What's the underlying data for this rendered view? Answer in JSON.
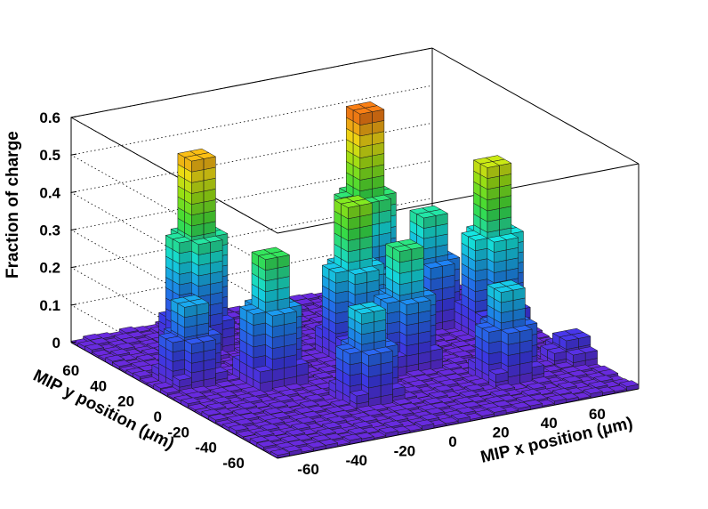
{
  "chart_data": {
    "type": "lego3d",
    "ylabel": "Fraction of charge",
    "x_axis_label": "MIP x position (μm)",
    "y_axis_label": "MIP y position (μm)",
    "z_ticks": [
      "0",
      "0.1",
      "0.2",
      "0.3",
      "0.4",
      "0.5",
      "0.6"
    ],
    "x_ticks": [
      "-60",
      "-40",
      "-20",
      "0",
      "20",
      "40",
      "60"
    ],
    "y_ticks": [
      "60",
      "40",
      "20",
      "0",
      "-20",
      "-40",
      "-60"
    ],
    "xlim": [
      -75,
      75
    ],
    "ylim": [
      -75,
      75
    ],
    "zlim": [
      0,
      0.6
    ],
    "grid": "z",
    "colormap": "rainbow",
    "bins_per_axis": 30,
    "peaks": [
      {
        "x": -40,
        "y": 45,
        "z": 0.53
      },
      {
        "x": 30,
        "y": 45,
        "z": 0.57
      },
      {
        "x": 5,
        "y": 10,
        "z": 0.42
      },
      {
        "x": 60,
        "y": 5,
        "z": 0.47
      },
      {
        "x": -35,
        "y": 0,
        "z": 0.35
      },
      {
        "x": 15,
        "y": -10,
        "z": 0.33
      },
      {
        "x": -15,
        "y": -35,
        "z": 0.25
      },
      {
        "x": -60,
        "y": 15,
        "z": 0.22
      },
      {
        "x": 45,
        "y": 25,
        "z": 0.31
      },
      {
        "x": 40,
        "y": -40,
        "z": 0.25
      },
      {
        "x": 20,
        "y": 5,
        "z": 0.22
      },
      {
        "x": 70,
        "y": -35,
        "z": 0.07
      }
    ]
  }
}
